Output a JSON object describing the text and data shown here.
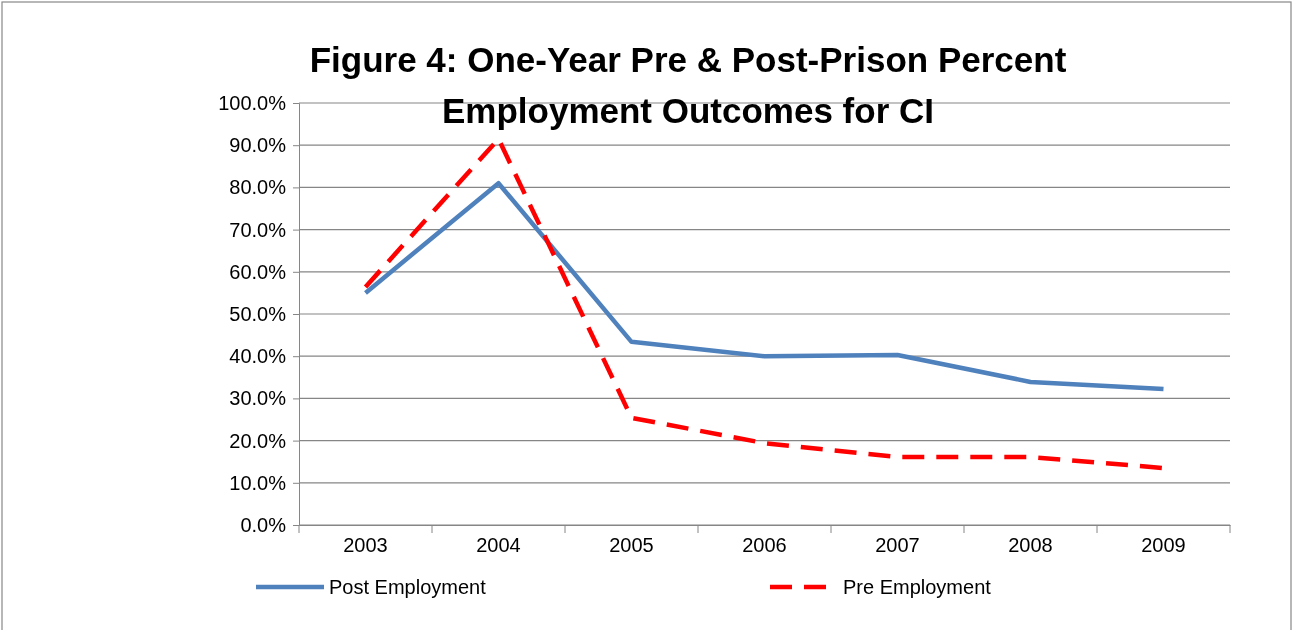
{
  "chart_data": {
    "type": "line",
    "title": "Figure 4:  One-Year Pre & Post-Prison Percent\nEmployment Outcomes for CI",
    "categories": [
      "2003",
      "2004",
      "2005",
      "2006",
      "2007",
      "2008",
      "2009"
    ],
    "series": [
      {
        "name": "Post Employment",
        "color": "#4f81bd",
        "line_style": "solid",
        "values": [
          55.0,
          81.0,
          43.4,
          40.0,
          40.3,
          33.9,
          32.2
        ]
      },
      {
        "name": "Pre Employment",
        "color": "#ff0000",
        "line_style": "dashed",
        "values": [
          56.4,
          91.5,
          25.4,
          19.4,
          16.1,
          16.1,
          13.5
        ]
      }
    ],
    "ylim": [
      0,
      100
    ],
    "yticks": [
      {
        "value": 0,
        "label": "0.0%"
      },
      {
        "value": 10,
        "label": "10.0%"
      },
      {
        "value": 20,
        "label": "20.0%"
      },
      {
        "value": 30,
        "label": "30.0%"
      },
      {
        "value": 40,
        "label": "40.0%"
      },
      {
        "value": 50,
        "label": "50.0%"
      },
      {
        "value": 60,
        "label": "60.0%"
      },
      {
        "value": 70,
        "label": "70.0%"
      },
      {
        "value": 80,
        "label": "80.0%"
      },
      {
        "value": 90,
        "label": "90.0%"
      },
      {
        "value": 100,
        "label": "100.0%"
      }
    ],
    "grid": "y",
    "legend": "bottom",
    "marker": "none"
  }
}
